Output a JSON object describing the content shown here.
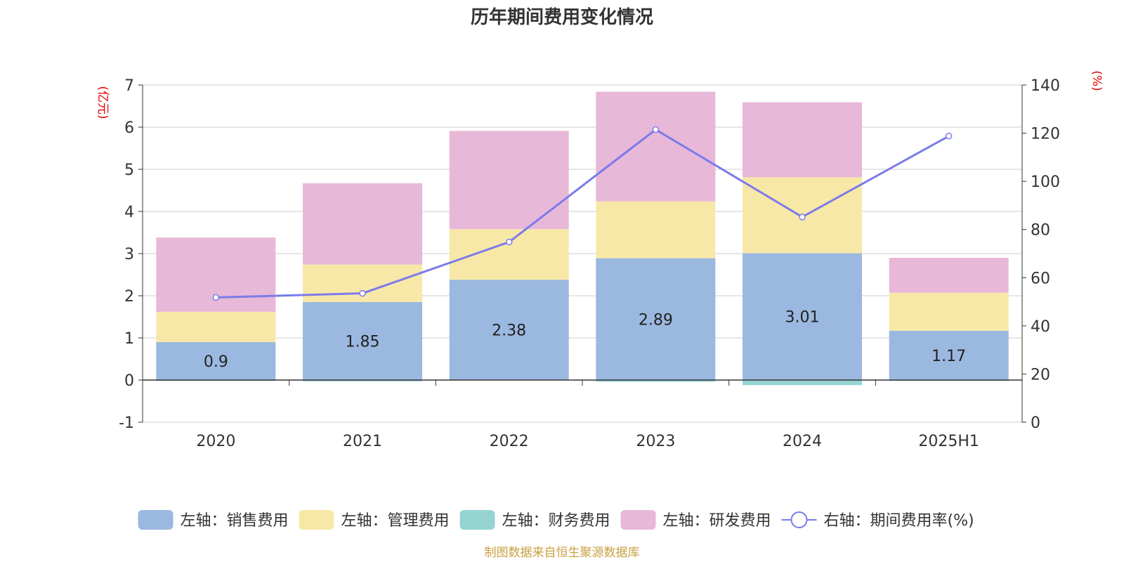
{
  "chart_data": {
    "type": "bar",
    "title": "历年期间费用变化情况",
    "categories": [
      "2020",
      "2021",
      "2022",
      "2023",
      "2024",
      "2025H1"
    ],
    "y_left": {
      "unit": "(亿元)",
      "ylim": [
        -1,
        7
      ],
      "ticks": [
        -1,
        0,
        1,
        2,
        3,
        4,
        5,
        6,
        7
      ]
    },
    "y_right": {
      "unit": "(%)",
      "ylim": [
        0,
        140
      ],
      "ticks": [
        0,
        20,
        40,
        60,
        80,
        100,
        120,
        140
      ]
    },
    "stacked": true,
    "series": [
      {
        "name": "左轴：销售费用",
        "axis": "left",
        "type": "bar",
        "color": "#9bb8e0",
        "values": [
          0.9,
          1.85,
          2.38,
          2.89,
          3.01,
          1.17
        ],
        "labels": [
          "0.9",
          "1.85",
          "2.38",
          "2.89",
          "3.01",
          "1.17"
        ]
      },
      {
        "name": "左轴：管理费用",
        "axis": "left",
        "type": "bar",
        "color": "#f8e8a8",
        "values": [
          0.72,
          0.89,
          1.2,
          1.35,
          1.8,
          0.9
        ]
      },
      {
        "name": "左轴：财务费用",
        "axis": "left",
        "type": "bar",
        "color": "#96d4d4",
        "values": [
          -0.02,
          -0.03,
          0.0,
          -0.04,
          -0.12,
          -0.02
        ]
      },
      {
        "name": "左轴：研发费用",
        "axis": "left",
        "type": "bar",
        "color": "#e8b8d8",
        "values": [
          1.76,
          1.93,
          2.33,
          2.6,
          1.78,
          0.83
        ]
      },
      {
        "name": "右轴：期间费用率(%)",
        "axis": "right",
        "type": "line",
        "color": "#7b7bea",
        "values": [
          51.8,
          53.5,
          74.8,
          121.5,
          85.2,
          118.8
        ]
      }
    ],
    "grid": true,
    "legend_position": "bottom"
  },
  "source_note": "制图数据来自恒生聚源数据库",
  "colors": {
    "unit_label": "#e60000",
    "source_note": "#c8a040",
    "axis": "#333333",
    "grid": "#cccccc"
  }
}
